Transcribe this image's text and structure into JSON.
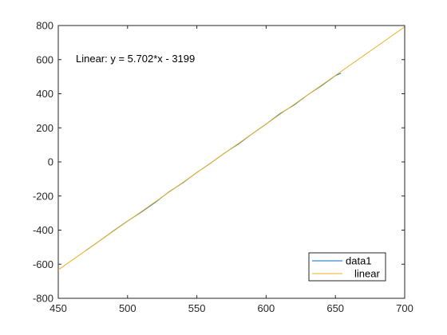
{
  "chart_data": {
    "type": "line",
    "title": "",
    "xlabel": "",
    "ylabel": "",
    "xlim": [
      450,
      700
    ],
    "ylim": [
      -800,
      800
    ],
    "x_ticks": [
      450,
      500,
      550,
      600,
      650,
      700
    ],
    "y_ticks": [
      -800,
      -600,
      -400,
      -200,
      0,
      200,
      400,
      600,
      800
    ],
    "x_tick_labels": [
      "450",
      "500",
      "550",
      "600",
      "650",
      "700"
    ],
    "y_tick_labels": [
      "-800",
      "-600",
      "-400",
      "-200",
      "0",
      "200",
      "400",
      "600",
      "800"
    ],
    "grid": false,
    "legend_position": "bottom-right",
    "annotation": "Linear:  y = 5.702*x - 3199",
    "series": [
      {
        "name": "data1",
        "color": "#0072BD",
        "x": [
          470,
          480,
          490,
          500,
          510,
          520,
          530,
          540,
          550,
          560,
          570,
          580,
          590,
          600,
          610,
          620,
          630,
          640,
          650,
          654
        ],
        "y": [
          -519,
          -462,
          -403,
          -347,
          -294,
          -237,
          -175,
          -122,
          -62,
          -7,
          52,
          105,
          165,
          222,
          283,
          333,
          393,
          447,
          506,
          520
        ]
      },
      {
        "name": "linear",
        "color": "#EDB120",
        "x": [
          450,
          700
        ],
        "y": [
          -633.1,
          792.4
        ]
      }
    ]
  }
}
